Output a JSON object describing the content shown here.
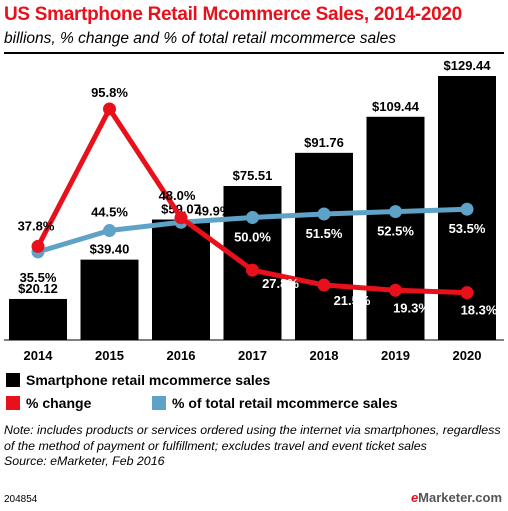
{
  "header": {
    "title": "US Smartphone Retail Mcommerce Sales, 2014-2020",
    "subtitle": "billions, % change and % of total retail mcommerce sales"
  },
  "chart_data": {
    "type": "bar",
    "categories": [
      "2014",
      "2015",
      "2016",
      "2017",
      "2018",
      "2019",
      "2020"
    ],
    "ylim": [
      0,
      140
    ],
    "series": [
      {
        "name": "Smartphone retail mcommerce sales",
        "kind": "bar",
        "color": "#000000",
        "values": [
          20.12,
          39.4,
          59.07,
          75.51,
          91.76,
          109.44,
          129.44
        ],
        "labels": [
          "$20.12",
          "$39.40",
          "$59.07",
          "$75.51",
          "$91.76",
          "$109.44",
          "$129.44"
        ]
      },
      {
        "name": "% change",
        "kind": "line",
        "color": "#e8101a",
        "values": [
          37.8,
          95.8,
          49.9,
          27.8,
          21.5,
          19.3,
          18.3
        ],
        "labels": [
          "37.8%",
          "95.8%",
          "49.9%",
          "27.8%",
          "21.5%",
          "19.3%",
          "18.3%"
        ]
      },
      {
        "name": "% of total retail mcommerce sales",
        "kind": "line",
        "color": "#5ea2c8",
        "values": [
          35.5,
          44.5,
          48.0,
          50.0,
          51.5,
          52.5,
          53.5
        ],
        "labels": [
          "35.5%",
          "44.5%",
          "48.0%",
          "50.0%",
          "51.5%",
          "52.5%",
          "53.5%"
        ]
      }
    ]
  },
  "note": "Note: includes products or services ordered using the internet via smartphones, regardless of the method of payment or fulfillment; excludes travel and event ticket sales",
  "source": "Source: eMarketer, Feb 2016",
  "footer": {
    "id": "204854",
    "brand_e": "e",
    "brand_rest": "Marketer",
    "brand_suffix": ".com"
  }
}
